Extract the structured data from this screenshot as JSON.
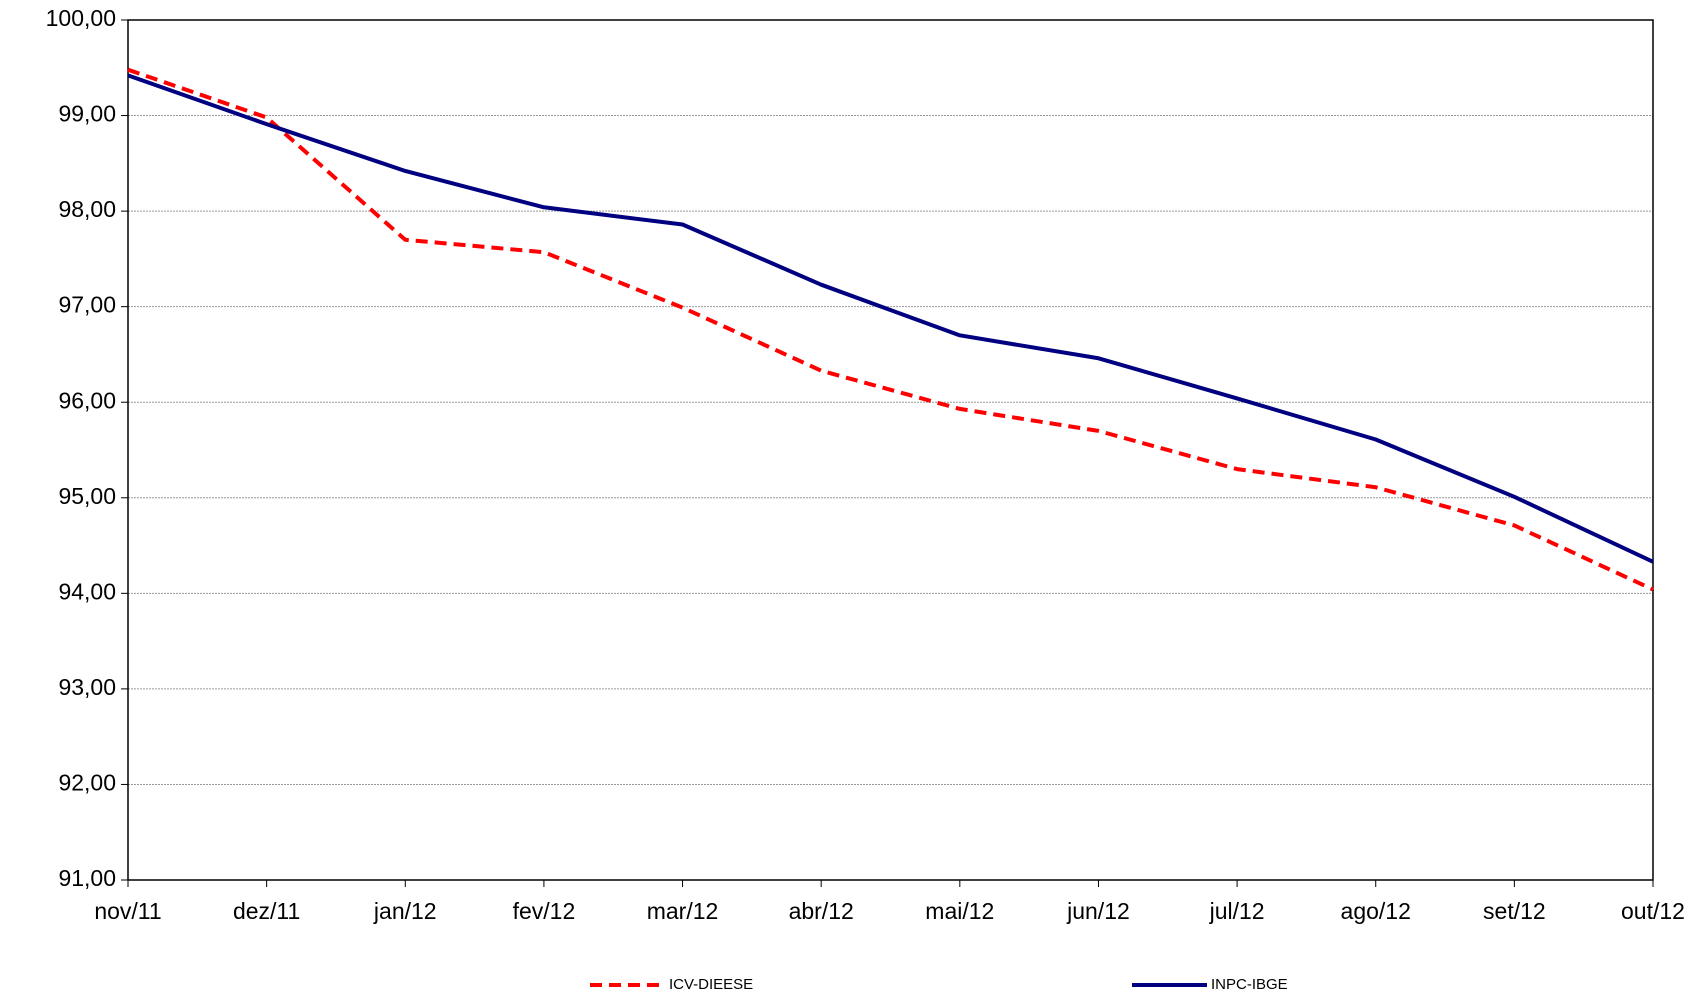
{
  "chart_data": {
    "type": "line",
    "categories": [
      "nov/11",
      "dez/11",
      "jan/12",
      "fev/12",
      "mar/12",
      "abr/12",
      "mai/12",
      "jun/12",
      "jul/12",
      "ago/12",
      "set/12",
      "out/12"
    ],
    "series": [
      {
        "name": "ICV-DIEESE",
        "color": "#ff0000",
        "dashed": true,
        "values": [
          99.48,
          98.98,
          97.7,
          97.57,
          96.99,
          96.33,
          95.93,
          95.7,
          95.3,
          95.11,
          94.71,
          94.04
        ]
      },
      {
        "name": "INPC-IBGE",
        "color": "#000080",
        "dashed": false,
        "values": [
          99.42,
          98.91,
          98.42,
          98.04,
          97.86,
          97.23,
          96.7,
          96.46,
          96.04,
          95.61,
          95.01,
          94.33
        ]
      }
    ],
    "ylim": [
      91,
      100
    ],
    "yticks": [
      {
        "value": 91,
        "label": "91,00"
      },
      {
        "value": 92,
        "label": "92,00"
      },
      {
        "value": 93,
        "label": "93,00"
      },
      {
        "value": 94,
        "label": "94,00"
      },
      {
        "value": 95,
        "label": "95,00"
      },
      {
        "value": 96,
        "label": "96,00"
      },
      {
        "value": 97,
        "label": "97,00"
      },
      {
        "value": 98,
        "label": "98,00"
      },
      {
        "value": 99,
        "label": "99,00"
      },
      {
        "value": 100,
        "label": "100,00"
      }
    ],
    "grid": true,
    "legend": "bottom"
  }
}
